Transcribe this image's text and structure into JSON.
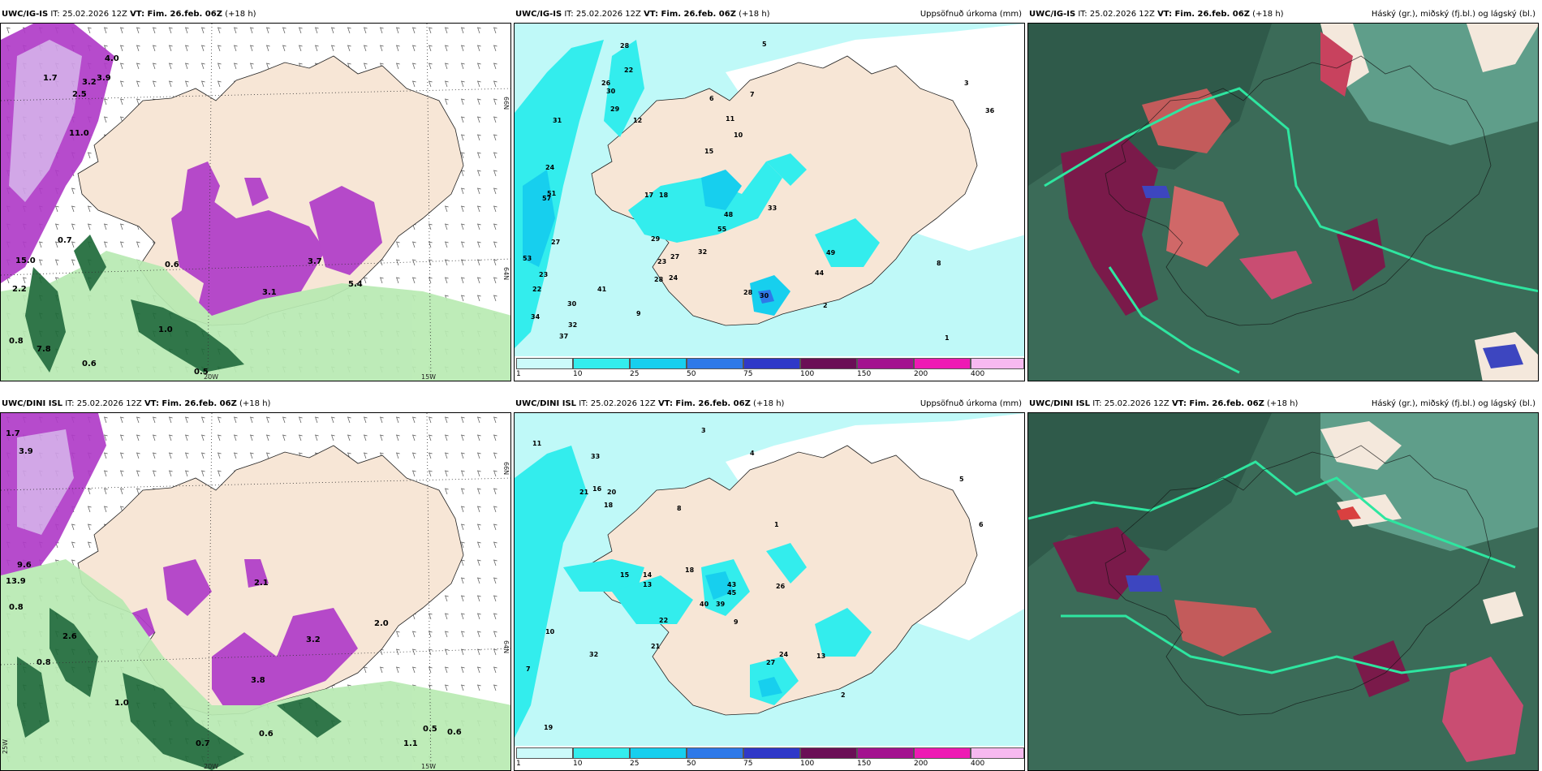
{
  "panels": [
    {
      "model": "UWC/IG-IS",
      "it": "IT: 25.02.2026 12Z",
      "vt_label": "VT: Fim. 26.feb. 06Z",
      "lead": "(+18 h)",
      "title": "",
      "type": "wind"
    },
    {
      "model": "UWC/IG-IS",
      "it": "IT: 25.02.2026 12Z",
      "vt_label": "VT: Fim. 26.feb. 06Z",
      "lead": "(+18 h)",
      "title": "Uppsöfnuð úrkoma (mm)",
      "type": "precip"
    },
    {
      "model": "UWC/IG-IS",
      "it": "IT: 25.02.2026 12Z",
      "vt_label": "VT: Fim. 26.feb. 06Z",
      "lead": "(+18 h)",
      "title": "Háský (gr.), miðský (fj.bl.) og lágský (bl.)",
      "type": "cloud"
    },
    {
      "model": "UWC/DINI ISL",
      "it": "IT: 25.02.2026 12Z",
      "vt_label": "VT: Fim. 26.feb. 06Z",
      "lead": "(+18 h)",
      "title": "",
      "type": "wind"
    },
    {
      "model": "UWC/DINI ISL",
      "it": "IT: 25.02.2026 12Z",
      "vt_label": "VT: Fim. 26.feb. 06Z",
      "lead": "(+18 h)",
      "title": "Uppsöfnuð úrkoma (mm)",
      "type": "precip"
    },
    {
      "model": "UWC/DINI ISL",
      "it": "IT: 25.02.2026 12Z",
      "vt_label": "VT: Fim. 26.feb. 06Z",
      "lead": "(+18 h)",
      "title": "Háský (gr.), miðský (fj.bl.) og lágský (bl.)",
      "type": "cloud"
    }
  ],
  "axis_labels": {
    "lat66": "66N",
    "lat64": "64N",
    "lon20": "20W",
    "lon15": "15W",
    "lon25": "25W"
  },
  "wind_values_top": [
    "4.0",
    "3.9",
    "1.7",
    "2.5",
    "3.2",
    "11.0",
    "15.0",
    "2.2",
    "0.7",
    "0.6",
    "0.8",
    "1.0",
    "0.5",
    "0.6",
    "7.8",
    "3.7",
    "3.1",
    "5.4"
  ],
  "wind_values_bottom": [
    "1.7",
    "3.9",
    "13.9",
    "9.6",
    "0.8",
    "2.6",
    "0.8",
    "1.0",
    "0.7",
    "0.6",
    "1.1",
    "0.5",
    "0.6",
    "3.2",
    "2.0",
    "3.8",
    "2.1"
  ],
  "precip_values_top": [
    "28",
    "22",
    "26",
    "30",
    "31",
    "29",
    "12",
    "51",
    "24",
    "57",
    "18",
    "17",
    "15",
    "48",
    "33",
    "55",
    "53",
    "27",
    "23",
    "22",
    "30",
    "34",
    "32",
    "37",
    "41",
    "28",
    "29",
    "23",
    "27",
    "24",
    "32",
    "36",
    "28",
    "30",
    "44",
    "49",
    "5",
    "6",
    "7",
    "10",
    "11",
    "3",
    "1",
    "2",
    "8",
    "9"
  ],
  "precip_values_bottom": [
    "11",
    "33",
    "21",
    "20",
    "16",
    "18",
    "14",
    "15",
    "13",
    "18",
    "43",
    "45",
    "39",
    "40",
    "26",
    "22",
    "21",
    "32",
    "10",
    "19",
    "27",
    "24",
    "13",
    "7",
    "3",
    "4",
    "5",
    "6",
    "8",
    "9",
    "1",
    "2"
  ],
  "colorbar": {
    "ticks": [
      "1",
      "10",
      "25",
      "50",
      "75",
      "100",
      "150",
      "200",
      "400"
    ],
    "colors": [
      "#ccfafa",
      "#33eded",
      "#17cfee",
      "#2e79e8",
      "#2f38c8",
      "#6b0f56",
      "#a3128f",
      "#ee1ab4",
      "#f7b9f0"
    ]
  },
  "colors": {
    "land": "#f7e6d6",
    "sea": "#ffffff",
    "wind_purple": "#b03cc8",
    "green_dark": "#1f6b3a",
    "cloud_bg": "#3b6b58",
    "precip_light": "#bff9f8"
  }
}
